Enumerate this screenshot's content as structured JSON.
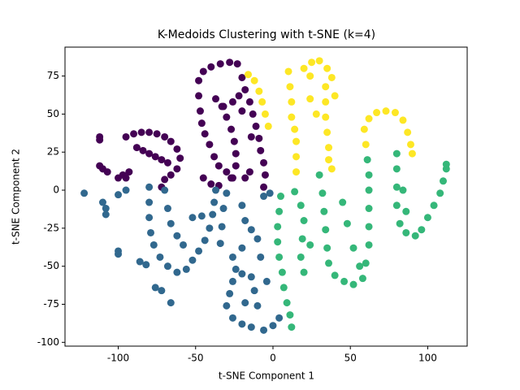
{
  "chart_data": {
    "type": "scatter",
    "title": "K-Medoids Clustering with t-SNE (k=4)",
    "xlabel": "t-SNE Component 1",
    "ylabel": "t-SNE Component 2",
    "xlim": [
      -134.4,
      125.5
    ],
    "ylim": [
      -102.5,
      94
    ],
    "xticks": [
      -100,
      -50,
      0,
      50,
      100
    ],
    "yticks": [
      -100,
      -75,
      -50,
      -25,
      0,
      25,
      50,
      75
    ],
    "series": [
      {
        "color": "#440154",
        "x": [
          -112,
          -112,
          -112,
          -110,
          -107,
          -100,
          -97,
          -95,
          -93,
          -95,
          -90,
          -85,
          -80,
          -75,
          -70,
          -66,
          -62,
          -60,
          -62,
          -66,
          -70,
          -72,
          -88,
          -84,
          -80,
          -76,
          -72,
          -68,
          -48,
          -45,
          -40,
          -34,
          -28,
          -23,
          -48,
          -47,
          -46,
          -44,
          -41,
          -38,
          -35,
          -30,
          -27,
          -40,
          -35,
          -45,
          -37,
          -33,
          -30,
          -27,
          -25,
          -24,
          -24,
          -26,
          -32,
          -26,
          -22,
          -20,
          -6,
          -5,
          -6,
          -8,
          -9,
          -11,
          -13,
          -15,
          -18,
          -20,
          -14,
          -18,
          -15
        ],
        "values": [
          35,
          33,
          16,
          14,
          12,
          8,
          10,
          8,
          12,
          35,
          37,
          38,
          38,
          37,
          35,
          32,
          27,
          21,
          14,
          10,
          7,
          2,
          28,
          26,
          24,
          22,
          20,
          18,
          72,
          78,
          81,
          83,
          84,
          83,
          62,
          52,
          44,
          37,
          30,
          22,
          16,
          12,
          8,
          4,
          3,
          8,
          60,
          55,
          48,
          40,
          32,
          24,
          16,
          8,
          55,
          58,
          62,
          52,
          2,
          10,
          18,
          26,
          34,
          42,
          50,
          58,
          66,
          74,
          35,
          8,
          12
        ]
      },
      {
        "color": "#31688e",
        "x": [
          -122,
          -110,
          -108,
          -108,
          -100,
          -95,
          -100,
          -100,
          -86,
          -82,
          -76,
          -72,
          -66,
          -80,
          -80,
          -80,
          -79,
          -77,
          -73,
          -68,
          -62,
          -56,
          -52,
          -48,
          -44,
          -41,
          -39,
          -38,
          -37,
          -70,
          -68,
          -66,
          -62,
          -58,
          -52,
          -46,
          -30,
          -32,
          -33,
          -34,
          -26,
          -24,
          -26,
          -28,
          -30,
          -26,
          -20,
          -14,
          -6,
          0,
          4,
          -20,
          -14,
          -12,
          -10,
          -18,
          -20,
          -18,
          -14,
          -10,
          -6,
          -2,
          -8,
          -4,
          -20
        ],
        "values": [
          -2,
          -8,
          -12,
          -16,
          -3,
          0,
          -40,
          -42,
          -47,
          -49,
          -64,
          -66,
          -74,
          2,
          -8,
          -18,
          -28,
          -36,
          -44,
          -50,
          -54,
          -52,
          -46,
          -40,
          -33,
          -25,
          -16,
          -8,
          0,
          0,
          -12,
          -22,
          -30,
          -36,
          -18,
          -17,
          -2,
          -12,
          -24,
          -35,
          -44,
          -52,
          -60,
          -68,
          -76,
          -84,
          -88,
          -90,
          -92,
          -89,
          -84,
          -55,
          -57,
          -66,
          -76,
          -74,
          -10,
          -20,
          -26,
          -32,
          -4,
          -2,
          -44,
          -60,
          -38
        ]
      },
      {
        "color": "#35b779",
        "x": [
          5,
          4,
          3,
          3,
          4,
          6,
          7,
          9,
          11,
          12,
          14,
          18,
          20,
          19,
          18,
          20,
          24,
          30,
          32,
          33,
          34,
          35,
          36,
          40,
          46,
          52,
          58,
          60,
          62,
          62,
          62,
          62,
          62,
          61,
          45,
          48,
          52,
          56,
          80,
          80,
          80,
          80,
          82,
          86,
          92,
          96,
          100,
          104,
          108,
          110,
          112,
          112,
          84,
          86
        ],
        "values": [
          -4,
          -14,
          -24,
          -34,
          -44,
          -54,
          -64,
          -74,
          -82,
          -90,
          -1,
          -10,
          -20,
          -32,
          -44,
          -54,
          -36,
          10,
          -2,
          -14,
          -26,
          -38,
          -48,
          -56,
          -60,
          -62,
          -58,
          -48,
          -36,
          -24,
          -12,
          0,
          10,
          20,
          -8,
          -22,
          -38,
          -50,
          24,
          14,
          2,
          -10,
          -22,
          -28,
          -30,
          -26,
          -18,
          -10,
          -2,
          6,
          14,
          17,
          0,
          -14
        ]
      },
      {
        "color": "#fde725",
        "x": [
          -16,
          -12,
          -9,
          -7,
          -5,
          -3,
          10,
          11,
          12,
          12,
          14,
          15,
          15,
          15,
          20,
          25,
          30,
          35,
          38,
          34,
          34,
          34,
          35,
          36,
          36,
          38,
          24,
          28,
          40,
          60,
          59,
          62,
          67,
          73,
          79,
          84,
          87,
          89,
          90,
          24
        ],
        "values": [
          76,
          72,
          65,
          58,
          50,
          42,
          78,
          68,
          58,
          48,
          40,
          32,
          22,
          12,
          80,
          84,
          85,
          80,
          74,
          68,
          58,
          48,
          38,
          28,
          20,
          14,
          60,
          50,
          62,
          30,
          40,
          47,
          51,
          52,
          51,
          46,
          38,
          30,
          24,
          75
        ]
      }
    ]
  }
}
